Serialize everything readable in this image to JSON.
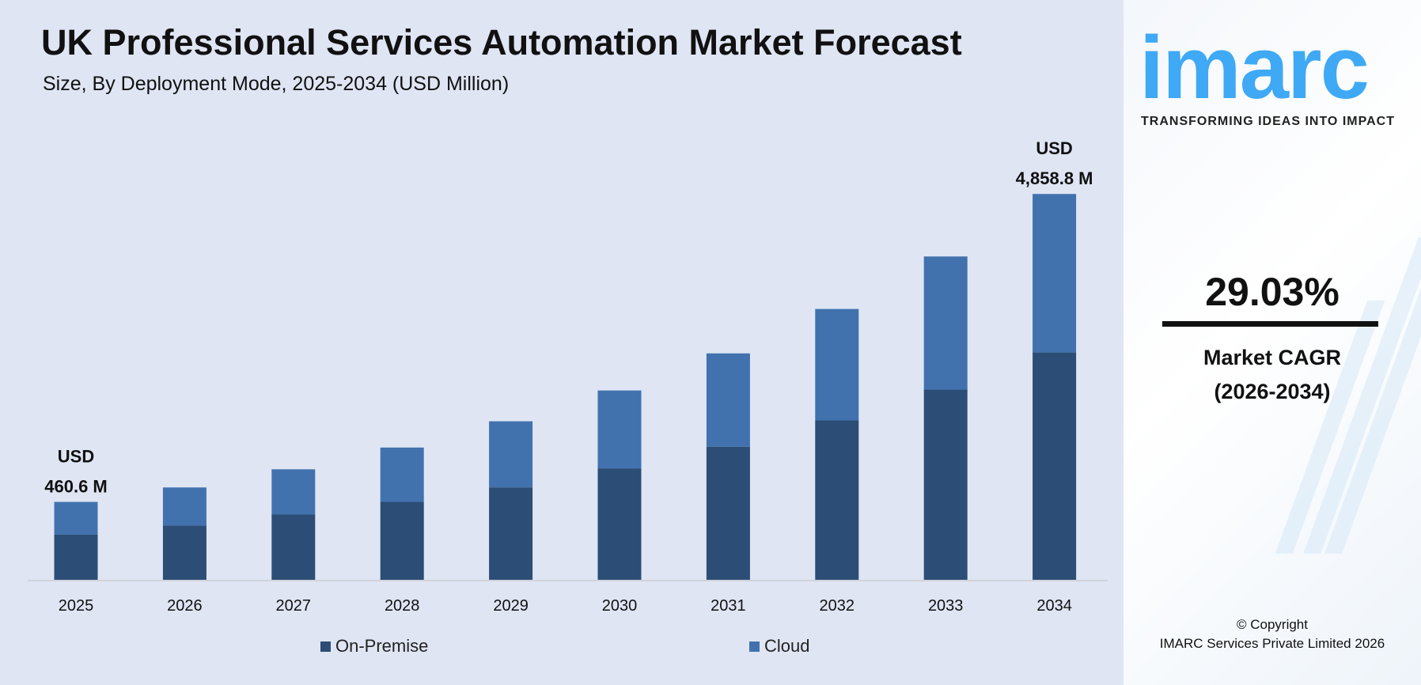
{
  "header": {
    "title": "UK Professional Services Automation Market Forecast",
    "subtitle": "Size, By Deployment Mode, 2025-2034 (USD Million)"
  },
  "chart_data": {
    "type": "bar",
    "stacked": true,
    "title": "UK Professional Services Automation Market Forecast",
    "subtitle": "Size, By Deployment Mode, 2025-2034 (USD Million)",
    "categories": [
      "2025",
      "2026",
      "2027",
      "2028",
      "2029",
      "2030",
      "2031",
      "2032",
      "2033",
      "2034"
    ],
    "series": [
      {
        "name": "On-Premise",
        "color": "#2c4d75",
        "values": [
          268,
          392,
          547,
          729,
          940,
          1208,
          1518,
          1893,
          2333,
          2863
        ]
      },
      {
        "name": "Cloud",
        "color": "#4172ae",
        "values": [
          192.6,
          275,
          379,
          508,
          672,
          844,
          1064,
          1323,
          1633,
          1995.8
        ]
      }
    ],
    "annotations": [
      {
        "category": "2025",
        "line1": "USD",
        "line2": "460.6 M"
      },
      {
        "category": "2034",
        "line1": "USD",
        "line2": "4,858.8 M"
      }
    ],
    "legend_position": "bottom",
    "grid": false,
    "y_axis_visible": false
  },
  "legend": {
    "items": [
      "On-Premise",
      "Cloud"
    ]
  },
  "sidebar": {
    "logo": "imarc",
    "tagline": "TRANSFORMING IDEAS INTO IMPACT",
    "cagr_value": "29.03%",
    "cagr_label": "Market CAGR",
    "cagr_period": "(2026-2034)",
    "copyright": "© Copyright",
    "company": "IMARC Services Private Limited 2026",
    "brand_color": "#3fa9f5"
  }
}
